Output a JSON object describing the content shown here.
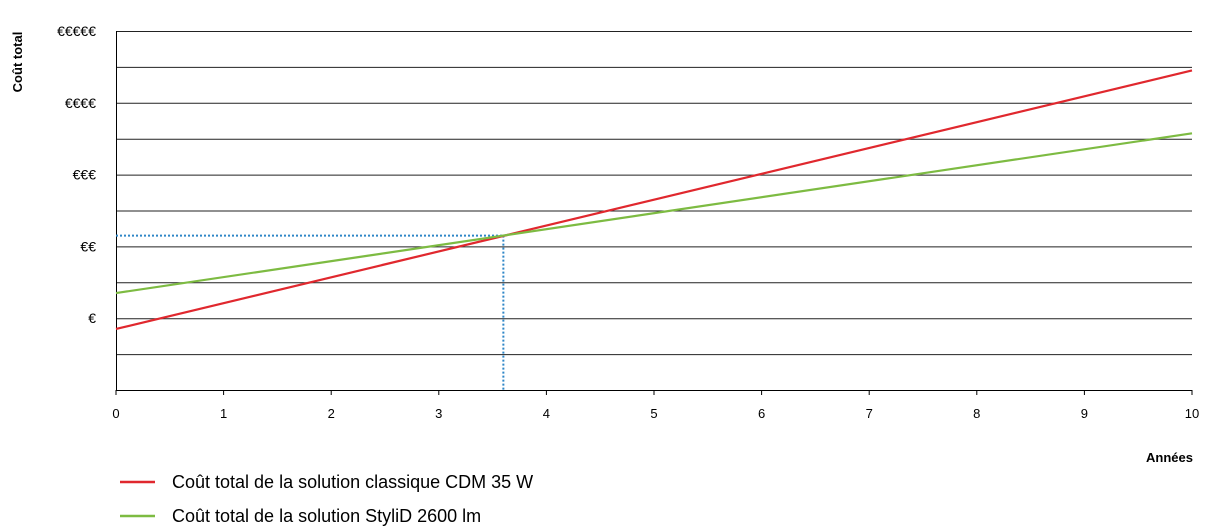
{
  "chart_data": {
    "type": "line",
    "title": "",
    "xlabel": "Années",
    "ylabel": "Coût total",
    "xlim": [
      0,
      10
    ],
    "ylim": [
      0,
      10
    ],
    "x_ticks": [
      "0",
      "1",
      "2",
      "3",
      "4",
      "5",
      "6",
      "7",
      "8",
      "9",
      "10"
    ],
    "y_ticks": [
      {
        "value": 2,
        "label": "€"
      },
      {
        "value": 4,
        "label": "€€"
      },
      {
        "value": 6,
        "label": "€€€"
      },
      {
        "value": 8,
        "label": "€€€€"
      },
      {
        "value": 10,
        "label": "€€€€€"
      }
    ],
    "grid": true,
    "legend_position": "bottom-left",
    "series": [
      {
        "name": "Coût total de la solution classique CDM 35 W",
        "color": "#e0282e",
        "x": [
          0,
          10
        ],
        "y": [
          1.7,
          8.9
        ]
      },
      {
        "name": "Coût total de la solution StyliD 2600 lm",
        "color": "#7dbb42",
        "x": [
          0,
          10
        ],
        "y": [
          2.7,
          7.15
        ]
      }
    ],
    "annotations": [
      {
        "type": "crossover-guide",
        "color": "#2f86c7",
        "x": 3.6,
        "y": 4.3
      }
    ]
  }
}
